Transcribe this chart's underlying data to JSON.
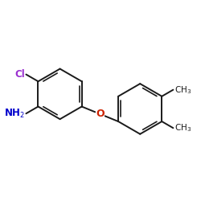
{
  "background_color": "#ffffff",
  "bond_color": "#1a1a1a",
  "cl_color": "#9b30d0",
  "nh2_color": "#0000cc",
  "o_color": "#cc2200",
  "ch3_color": "#1a1a1a",
  "figsize": [
    2.5,
    2.5
  ],
  "dpi": 100,
  "lw": 1.4,
  "lw_inner": 1.2
}
